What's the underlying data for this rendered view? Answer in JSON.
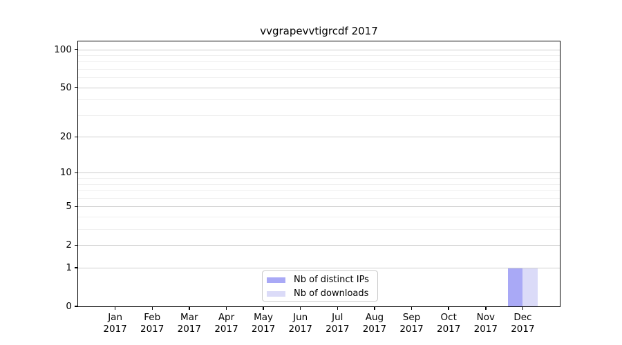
{
  "chart_data": {
    "type": "bar",
    "title": "vvgrapevvtigrcdf 2017",
    "categories": [
      "Jan",
      "Feb",
      "Mar",
      "Apr",
      "May",
      "Jun",
      "Jul",
      "Aug",
      "Sep",
      "Oct",
      "Nov",
      "Dec"
    ],
    "x_tick_second_line": "2017",
    "series": [
      {
        "name": "Nb of distinct IPs",
        "color": "#a9a9f6",
        "values": [
          0,
          0,
          0,
          0,
          0,
          0,
          0,
          0,
          0,
          0,
          0,
          1
        ]
      },
      {
        "name": "Nb of downloads",
        "color": "#dbdbf8",
        "values": [
          0,
          0,
          0,
          0,
          0,
          0,
          0,
          0,
          0,
          0,
          0,
          1
        ]
      }
    ],
    "y_ticks": [
      0,
      1,
      2,
      5,
      10,
      20,
      50,
      100
    ],
    "y_minor_gridlines": [
      3,
      4,
      6,
      7,
      8,
      9,
      30,
      40,
      60,
      70,
      80,
      90
    ],
    "scale": "log1p",
    "ylim": [
      0,
      114
    ],
    "grid": true,
    "legend_position": "bottom-center",
    "colors": {
      "major_gridline": "#cdcdcd",
      "minor_gridline": "#efefef",
      "axis": "#000000"
    }
  }
}
